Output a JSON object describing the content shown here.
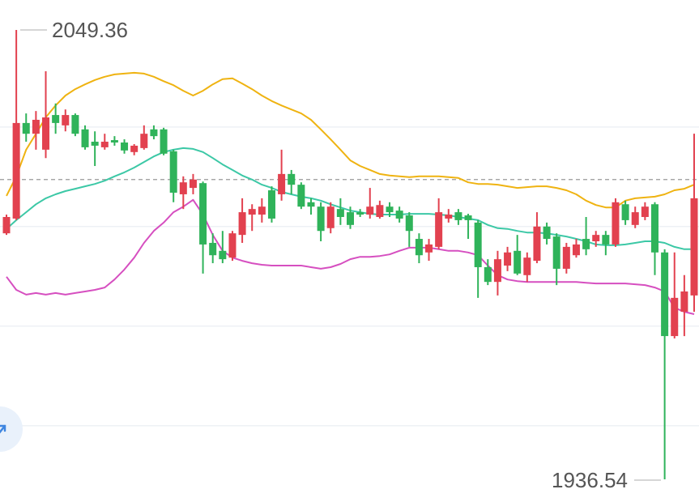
{
  "chart_data": {
    "type": "candlestick",
    "ylim": [
      1930.84,
      2056.88
    ],
    "grid_values": [
      1950,
      1975,
      2000,
      2025
    ],
    "price_line": 2011.8,
    "up_color": "#e2414f",
    "down_color": "#2fb35a",
    "open": [
      1998.3,
      2002.0,
      2026.0,
      2023.3,
      2019.3,
      2028.0,
      2025.4,
      2028.0,
      2024.4,
      2021.3,
      2019.9,
      2021.7,
      2021.1,
      2018.7,
      2019.7,
      2024.4,
      2024.4,
      2018.9,
      2008.1,
      2009.7,
      2010.9,
      1995.9,
      1993.9,
      1992.2,
      1997.9,
      2003.0,
      2003.0,
      2009.1,
      2008.1,
      2013.2,
      2010.5,
      2006.1,
      2005.0,
      1999.6,
      2004.4,
      2003.6,
      2003.6,
      2003.0,
      2002.4,
      2005.0,
      2004.0,
      2002.8,
      1996.9,
      1993.5,
      1994.9,
      2002.0,
      2003.6,
      2002.8,
      2001.0,
      1989.8,
      1986.1,
      1990.2,
      1993.9,
      1987.8,
      1991.4,
      2000.0,
      1997.5,
      1989.4,
      1992.8,
      1996.9,
      1996.3,
      1997.9,
      1995.5,
      2005.6,
      2000.4,
      2002.4,
      2005.6,
      1993.5,
      1972.5,
      1978.6,
      1982.7
    ],
    "high": [
      2003.0,
      2049.36,
      2028.4,
      2029.0,
      2039.0,
      2030.9,
      2029.4,
      2028.4,
      2025.4,
      2023.9,
      2023.3,
      2022.7,
      2021.9,
      2020.7,
      2025.4,
      2025.4,
      2024.8,
      2019.3,
      2012.6,
      2013.2,
      2011.3,
      1998.3,
      1998.9,
      1998.9,
      2007.1,
      2005.6,
      2007.1,
      2010.1,
      2019.3,
      2014.2,
      2011.1,
      2007.1,
      2006.1,
      2006.1,
      2007.1,
      2005.0,
      2004.4,
      2009.7,
      2006.5,
      2006.1,
      2005.0,
      2003.6,
      1998.3,
      1996.9,
      2007.1,
      2004.4,
      2004.4,
      2003.2,
      2001.6,
      1991.8,
      1993.9,
      1994.9,
      1997.9,
      1993.5,
      2003.6,
      2001.0,
      1998.3,
      1995.9,
      1996.9,
      2002.4,
      1998.9,
      1998.9,
      2007.1,
      2006.5,
      2005.0,
      2006.1,
      2006.1,
      1994.3,
      1993.5,
      1987.8,
      2023.3
    ],
    "low": [
      1997.9,
      2001.6,
      2021.3,
      2019.3,
      2017.2,
      2023.3,
      2023.9,
      2022.7,
      2019.3,
      2015.2,
      2019.3,
      2020.3,
      2018.3,
      2017.9,
      2019.3,
      2021.9,
      2017.9,
      2006.1,
      2004.4,
      2008.1,
      1988.2,
      1990.8,
      1990.8,
      1991.4,
      1995.9,
      1998.9,
      2001.0,
      2001.0,
      2006.5,
      2008.1,
      2004.4,
      2003.0,
      1996.3,
      1998.3,
      2000.4,
      1999.4,
      2002.4,
      2002.0,
      2002.0,
      2002.4,
      2001.0,
      1994.9,
      1990.8,
      1991.4,
      1994.3,
      2001.0,
      2000.4,
      1996.9,
      1982.1,
      1985.3,
      1982.7,
      1988.8,
      1987.8,
      1986.1,
      1990.8,
      1995.5,
      1985.3,
      1988.2,
      1992.2,
      1992.8,
      1994.9,
      1992.8,
      1994.9,
      2000.4,
      1999.6,
      2001.6,
      1987.8,
      1936.54,
      1971.9,
      1972.5,
      1978.6
    ],
    "close": [
      2002.4,
      2026.0,
      2023.3,
      2026.8,
      2027.4,
      2026.0,
      2028.0,
      2023.3,
      2019.9,
      2020.3,
      2021.3,
      2021.1,
      2019.1,
      2020.3,
      2023.3,
      2022.7,
      2018.3,
      2008.5,
      2011.1,
      2011.8,
      1995.5,
      1992.8,
      1991.8,
      1998.3,
      2003.6,
      2004.4,
      2005.0,
      2002.0,
      2013.2,
      2010.5,
      2005.0,
      2005.0,
      1998.9,
      2005.0,
      2002.4,
      2000.4,
      2003.0,
      2005.0,
      2005.4,
      2003.6,
      2002.0,
      1998.9,
      1992.8,
      1995.5,
      2003.6,
      2003.0,
      2001.6,
      2001.6,
      1989.8,
      1986.1,
      1991.8,
      1993.5,
      1988.2,
      1992.2,
      2000.0,
      1996.9,
      1989.4,
      1994.9,
      1995.5,
      1994.3,
      1997.9,
      1995.5,
      2006.1,
      2001.6,
      2003.6,
      2005.0,
      1993.5,
      1972.5,
      1982.1,
      1983.7,
      2007.1
    ],
    "bands": [
      {
        "color": "#efb311",
        "values": [
          2007.7,
          2012.6,
          2019.3,
          2023.3,
          2027.4,
          2030.4,
          2032.9,
          2034.5,
          2035.7,
          2036.8,
          2037.6,
          2038.2,
          2038.4,
          2038.6,
          2038.4,
          2037.6,
          2036.5,
          2035.5,
          2034.1,
          2032.9,
          2034.1,
          2035.7,
          2037.0,
          2037.2,
          2035.9,
          2034.5,
          2032.9,
          2031.5,
          2030.4,
          2029.4,
          2028.4,
          2026.8,
          2024.4,
          2021.9,
          2019.3,
          2016.6,
          2015.2,
          2014.2,
          2013.2,
          2012.8,
          2012.6,
          2012.4,
          2012.6,
          2012.6,
          2012.6,
          2012.4,
          2012.2,
          2011.1,
          2010.7,
          2010.7,
          2010.5,
          2010.1,
          2009.7,
          2009.9,
          2010.1,
          2010.1,
          2009.7,
          2009.1,
          2008.1,
          2006.5,
          2005.4,
          2004.8,
          2004.8,
          2006.5,
          2007.1,
          2007.3,
          2007.5,
          2008.1,
          2009.1,
          2009.5,
          2010.5
        ]
      },
      {
        "color": "#3cc8a6",
        "values": [
          1999.4,
          2001.6,
          2003.6,
          2005.6,
          2007.1,
          2008.1,
          2008.9,
          2009.5,
          2010.1,
          2010.7,
          2011.5,
          2012.6,
          2013.6,
          2014.8,
          2016.2,
          2017.6,
          2018.7,
          2019.3,
          2019.7,
          2019.5,
          2018.7,
          2017.2,
          2015.6,
          2014.2,
          2012.8,
          2011.8,
          2010.5,
          2009.7,
          2008.7,
          2008.1,
          2007.5,
          2007.1,
          2006.5,
          2005.6,
          2004.8,
          2004.0,
          2003.6,
          2003.2,
          2003.0,
          2003.0,
          2003.0,
          2003.2,
          2003.2,
          2003.2,
          2003.0,
          2002.8,
          2002.4,
          2002.0,
          2001.6,
          2000.4,
          1999.6,
          1999.4,
          1998.9,
          1998.5,
          1998.5,
          1998.3,
          1997.9,
          1997.5,
          1996.9,
          1996.3,
          1995.5,
          1995.3,
          1995.3,
          1995.5,
          1995.9,
          1996.3,
          1996.3,
          1995.9,
          1994.9,
          1994.3,
          1994.3
        ]
      },
      {
        "color": "#d64fc0",
        "values": [
          1987.4,
          1984.1,
          1982.9,
          1983.3,
          1982.9,
          1983.3,
          1982.9,
          1983.3,
          1983.7,
          1984.1,
          1984.7,
          1986.7,
          1989.2,
          1992.2,
          1995.9,
          1998.9,
          2001.0,
          2003.6,
          2005.0,
          2006.7,
          2003.0,
          1997.9,
          1993.9,
          1992.2,
          1991.4,
          1990.8,
          1990.4,
          1990.2,
          1990.2,
          1990.2,
          1990.2,
          1989.8,
          1989.4,
          1989.8,
          1990.6,
          1991.8,
          1992.4,
          1992.4,
          1992.6,
          1993.0,
          1993.9,
          1994.7,
          1994.7,
          1994.7,
          1994.3,
          1993.9,
          1993.9,
          1993.5,
          1992.8,
          1990.2,
          1987.8,
          1986.7,
          1986.3,
          1986.1,
          1986.1,
          1986.1,
          1986.1,
          1986.1,
          1986.1,
          1985.9,
          1985.7,
          1985.7,
          1985.7,
          1985.7,
          1985.5,
          1985.3,
          1984.7,
          1983.7,
          1979.6,
          1978.6,
          1978.0
        ]
      }
    ],
    "annotations": [
      {
        "value": 2049.36
      },
      {
        "value": 1936.54
      }
    ]
  }
}
